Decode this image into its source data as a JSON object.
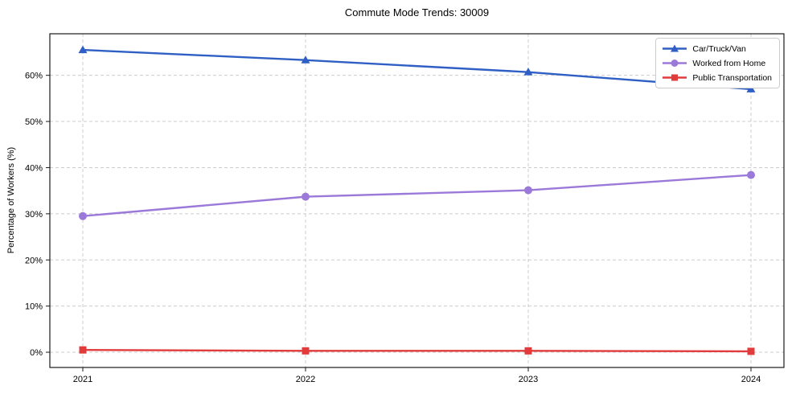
{
  "chart_data": {
    "type": "line",
    "title": "Commute Mode Trends: 30009",
    "xlabel": "",
    "ylabel": "Percentage of Workers (%)",
    "categories": [
      "2021",
      "2022",
      "2023",
      "2024"
    ],
    "series": [
      {
        "name": "Car/Truck/Van",
        "marker": "triangle",
        "color": "#2f5fc4",
        "values": [
          65.5,
          63.3,
          60.7,
          57.0
        ]
      },
      {
        "name": "Worked from Home",
        "marker": "circle",
        "color": "#9b79d9",
        "values": [
          29.5,
          33.7,
          35.1,
          38.4
        ]
      },
      {
        "name": "Public Transportation",
        "marker": "square",
        "color": "#e23b3b",
        "values": [
          0.5,
          0.3,
          0.3,
          0.2
        ]
      }
    ],
    "y_ticks": [
      0,
      10,
      20,
      30,
      40,
      50,
      60
    ],
    "y_tick_labels": [
      "0%",
      "10%",
      "20%",
      "30%",
      "40%",
      "50%",
      "60%"
    ],
    "ylim": [
      -3.3,
      69
    ],
    "grid": true,
    "grid_style": "dashed",
    "grid_color": "#cccccc",
    "border_color": "#1a1a1a",
    "background": "#ffffff",
    "legend_position": "upper right"
  }
}
